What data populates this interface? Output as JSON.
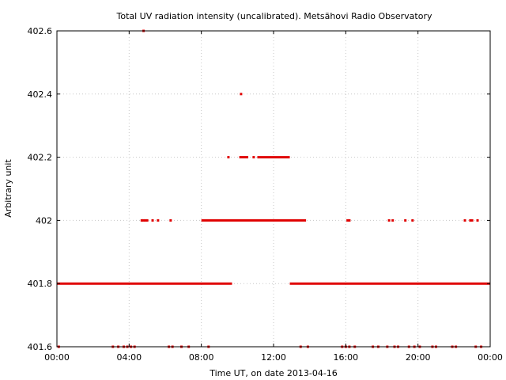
{
  "chart_data": {
    "type": "scatter",
    "title": "Total UV radiation intensity (uncalibrated). Metsähovi Radio Observatory",
    "xlabel": "Time UT, on date 2013-04-16",
    "ylabel": "Arbitrary unit",
    "x_unit": "hours UT",
    "xlim": [
      0,
      24
    ],
    "ylim": [
      401.6,
      402.6
    ],
    "x_ticks": [
      "00:00",
      "04:00",
      "08:00",
      "12:00",
      "16:00",
      "20:00",
      "00:00"
    ],
    "x_tick_values": [
      0,
      4,
      8,
      12,
      16,
      20,
      24
    ],
    "y_ticks": [
      "401.6",
      "401.8",
      "402",
      "402.2",
      "402.4",
      "402.6"
    ],
    "y_tick_values": [
      401.6,
      401.8,
      402.0,
      402.2,
      402.4,
      402.6
    ],
    "grid": true,
    "marker_color": "#e00000",
    "series": [
      {
        "segments": [
          {
            "y": 401.8,
            "x_from": 0.0,
            "x_to": 9.7
          },
          {
            "y": 401.8,
            "x_from": 12.9,
            "x_to": 24.0
          },
          {
            "y": 402.0,
            "x_from": 8.0,
            "x_to": 13.8
          },
          {
            "y": 402.2,
            "x_from": 10.1,
            "x_to": 10.6
          },
          {
            "y": 402.2,
            "x_from": 11.1,
            "x_to": 12.9
          }
        ],
        "points": [
          {
            "x": 4.8,
            "y": 402.6
          },
          {
            "x": 10.2,
            "y": 402.4
          },
          {
            "x": 9.5,
            "y": 402.2
          },
          {
            "x": 10.9,
            "y": 402.2
          },
          {
            "x": 4.7,
            "y": 402.0
          },
          {
            "x": 4.8,
            "y": 402.0
          },
          {
            "x": 4.9,
            "y": 402.0
          },
          {
            "x": 5.0,
            "y": 402.0
          },
          {
            "x": 5.3,
            "y": 402.0
          },
          {
            "x": 5.6,
            "y": 402.0
          },
          {
            "x": 6.3,
            "y": 402.0
          },
          {
            "x": 16.1,
            "y": 402.0
          },
          {
            "x": 16.2,
            "y": 402.0
          },
          {
            "x": 18.4,
            "y": 402.0
          },
          {
            "x": 18.6,
            "y": 402.0
          },
          {
            "x": 19.3,
            "y": 402.0
          },
          {
            "x": 19.7,
            "y": 402.0
          },
          {
            "x": 22.6,
            "y": 402.0
          },
          {
            "x": 22.9,
            "y": 402.0
          },
          {
            "x": 23.0,
            "y": 402.0
          },
          {
            "x": 23.3,
            "y": 402.0
          },
          {
            "x": 0.1,
            "y": 401.6
          },
          {
            "x": 3.1,
            "y": 401.6
          },
          {
            "x": 3.4,
            "y": 401.6
          },
          {
            "x": 3.7,
            "y": 401.6
          },
          {
            "x": 3.9,
            "y": 401.6
          },
          {
            "x": 4.1,
            "y": 401.6
          },
          {
            "x": 4.3,
            "y": 401.6
          },
          {
            "x": 6.2,
            "y": 401.6
          },
          {
            "x": 6.4,
            "y": 401.6
          },
          {
            "x": 6.9,
            "y": 401.6
          },
          {
            "x": 7.3,
            "y": 401.6
          },
          {
            "x": 8.4,
            "y": 401.6
          },
          {
            "x": 13.5,
            "y": 401.6
          },
          {
            "x": 13.9,
            "y": 401.6
          },
          {
            "x": 15.8,
            "y": 401.6
          },
          {
            "x": 16.0,
            "y": 401.6
          },
          {
            "x": 16.2,
            "y": 401.6
          },
          {
            "x": 16.5,
            "y": 401.6
          },
          {
            "x": 17.5,
            "y": 401.6
          },
          {
            "x": 17.8,
            "y": 401.6
          },
          {
            "x": 18.3,
            "y": 401.6
          },
          {
            "x": 18.7,
            "y": 401.6
          },
          {
            "x": 18.9,
            "y": 401.6
          },
          {
            "x": 19.5,
            "y": 401.6
          },
          {
            "x": 19.8,
            "y": 401.6
          },
          {
            "x": 20.1,
            "y": 401.6
          },
          {
            "x": 20.8,
            "y": 401.6
          },
          {
            "x": 21.0,
            "y": 401.6
          },
          {
            "x": 21.9,
            "y": 401.6
          },
          {
            "x": 22.1,
            "y": 401.6
          },
          {
            "x": 23.2,
            "y": 401.6
          },
          {
            "x": 23.5,
            "y": 401.6
          }
        ]
      }
    ]
  }
}
